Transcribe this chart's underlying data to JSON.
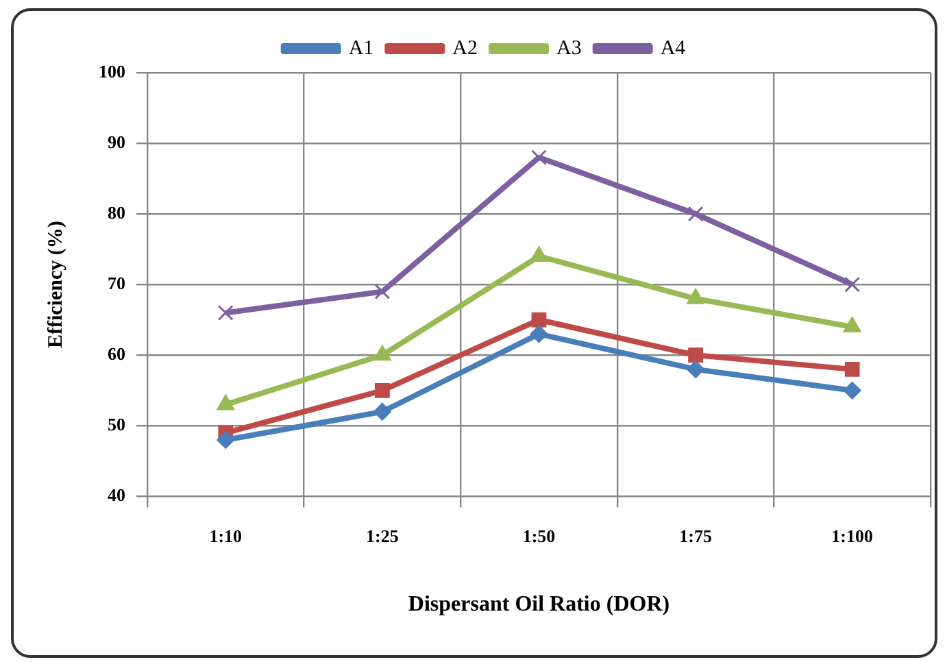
{
  "chart_data": {
    "type": "line",
    "xlabel": "Dispersant Oil Ratio (DOR)",
    "ylabel": "Efficiency (%)",
    "categories": [
      "1:10",
      "1:25",
      "1:50",
      "1:75",
      "1:100"
    ],
    "series": [
      {
        "name": "A1",
        "color": "#4a7ebb",
        "marker": "diamond",
        "values": [
          48,
          52,
          63,
          58,
          55
        ]
      },
      {
        "name": "A2",
        "color": "#be4b48",
        "marker": "square",
        "values": [
          49,
          55,
          65,
          60,
          58
        ]
      },
      {
        "name": "A3",
        "color": "#98b954",
        "marker": "triangle",
        "values": [
          53,
          60,
          74,
          68,
          64
        ]
      },
      {
        "name": "A4",
        "color": "#7d60a0",
        "marker": "cross",
        "values": [
          66,
          69,
          88,
          80,
          70
        ]
      }
    ],
    "ylim": [
      40,
      100
    ],
    "yticks": [
      40,
      50,
      60,
      70,
      80,
      90,
      100
    ],
    "grid": true,
    "legend": "top"
  }
}
